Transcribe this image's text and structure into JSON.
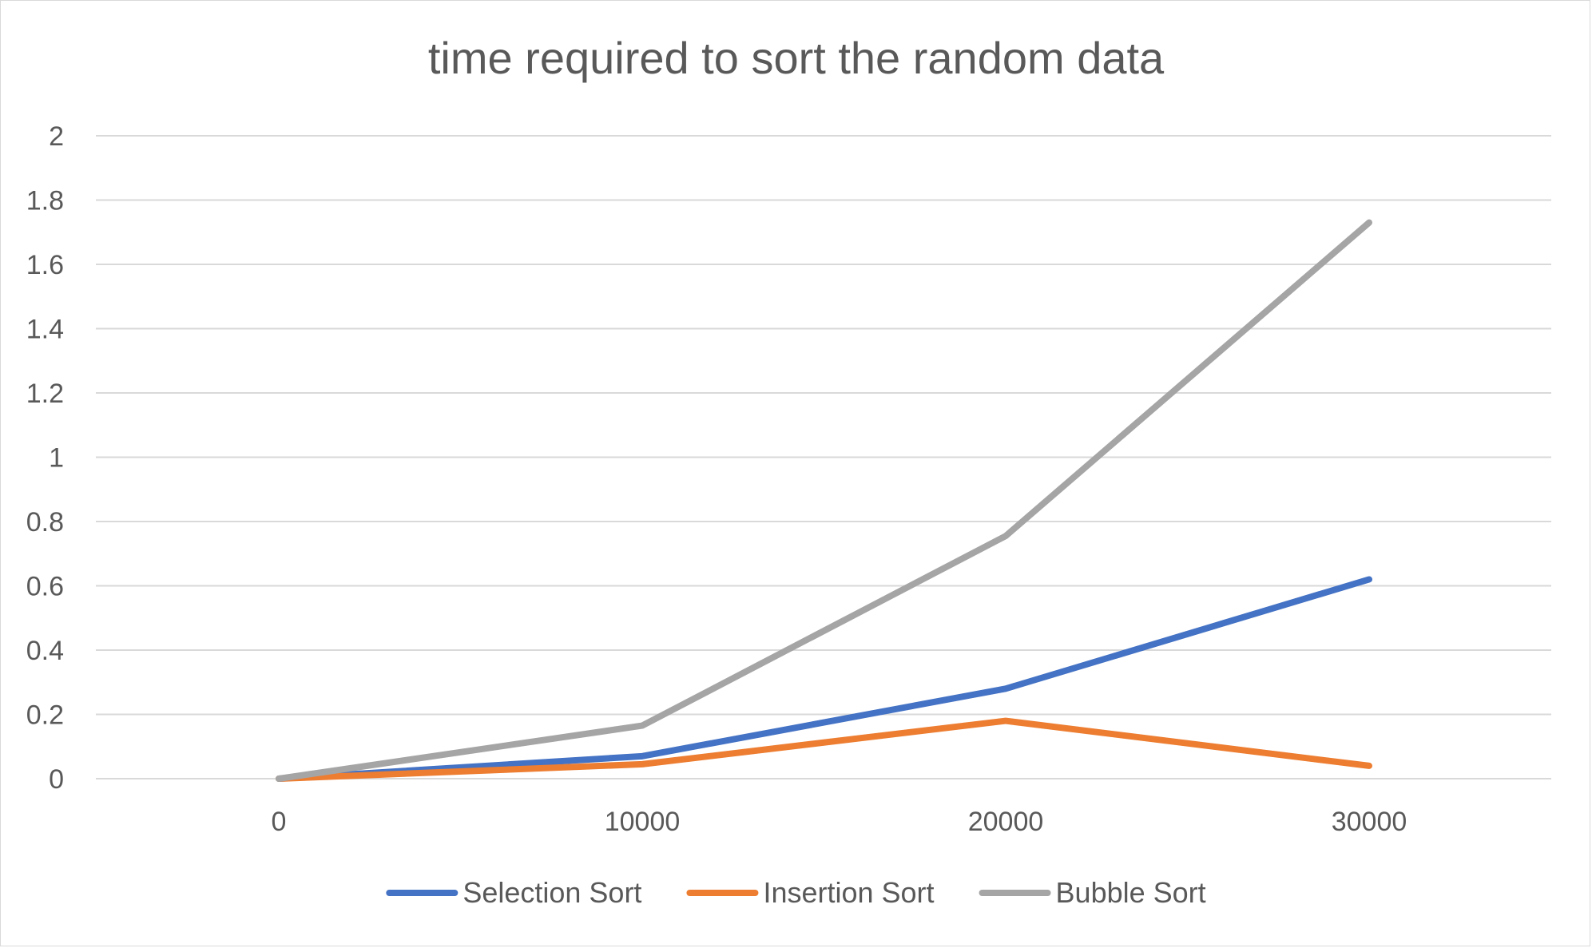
{
  "chart_data": {
    "type": "line",
    "title": "time required to sort the random data",
    "xlabel": "",
    "ylabel": "",
    "categories": [
      "0",
      "10000",
      "20000",
      "30000"
    ],
    "ylim": [
      0,
      2
    ],
    "yticks": [
      "0",
      "0.2",
      "0.4",
      "0.6",
      "0.8",
      "1",
      "1.2",
      "1.4",
      "1.6",
      "1.8",
      "2"
    ],
    "grid": true,
    "legend": "bottom",
    "series": [
      {
        "name": "Selection Sort",
        "color": "#4472c4",
        "values": [
          0,
          0.07,
          0.28,
          0.62
        ]
      },
      {
        "name": "Insertion Sort",
        "color": "#ed7d31",
        "values": [
          0,
          0.045,
          0.18,
          0.04
        ]
      },
      {
        "name": "Bubble Sort",
        "color": "#a5a5a5",
        "values": [
          0,
          0.165,
          0.755,
          1.73
        ]
      }
    ]
  }
}
